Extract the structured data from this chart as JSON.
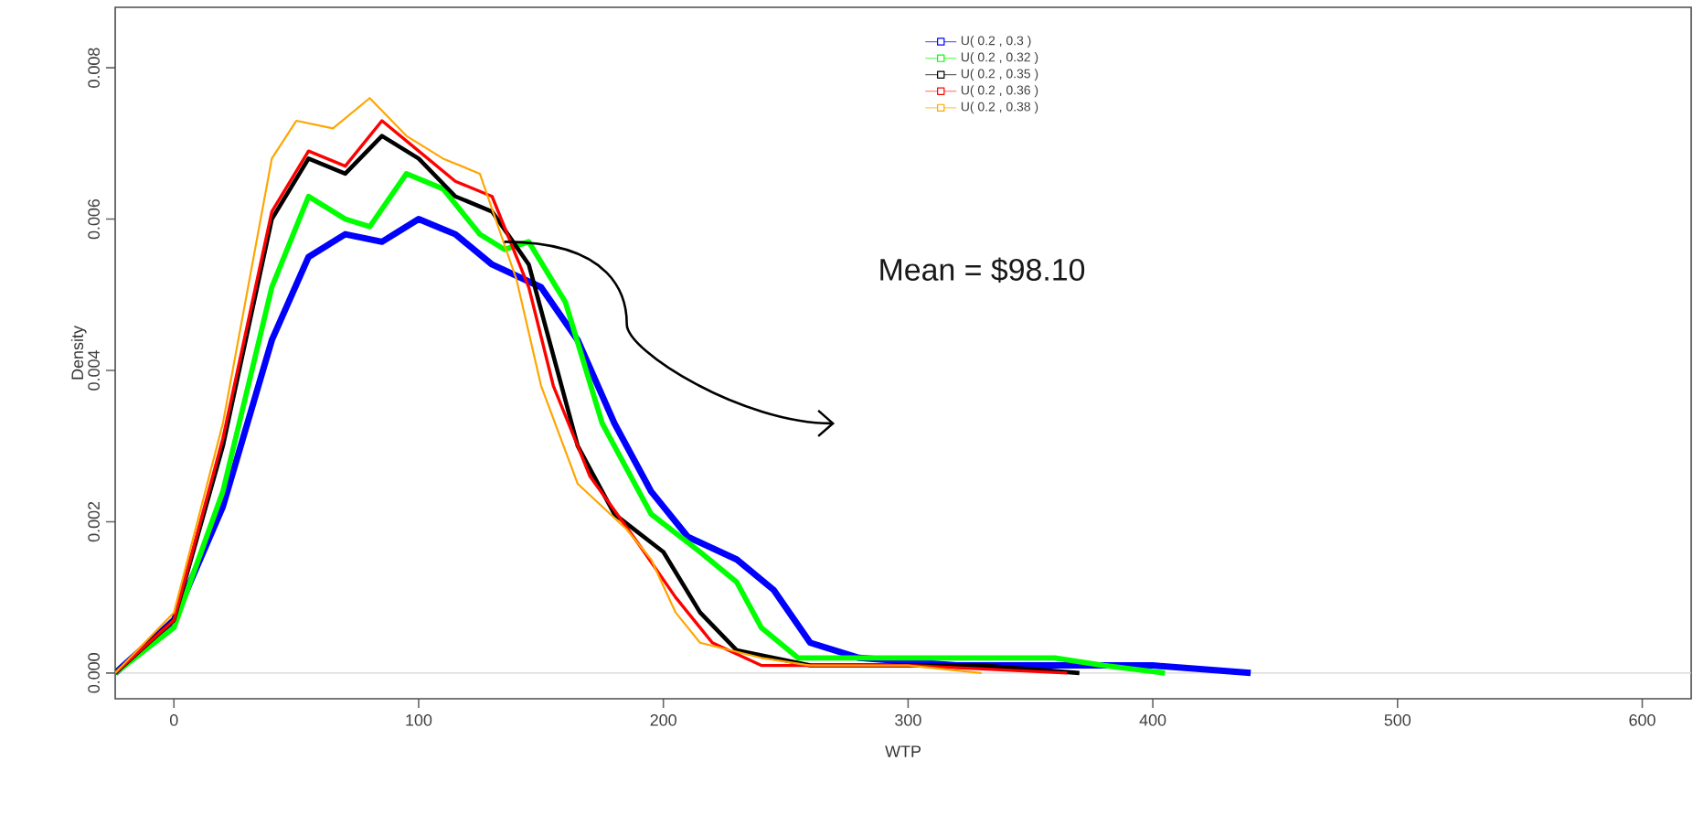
{
  "chart_data": {
    "type": "line",
    "xlabel": "WTP",
    "ylabel": "Density",
    "xlim": [
      -24,
      620
    ],
    "ylim": [
      -0.00034,
      0.0088
    ],
    "xticks": [
      0,
      100,
      200,
      300,
      400,
      500,
      600
    ],
    "yticks": [
      {
        "value": 0,
        "label": "0.000"
      },
      0.002,
      0.004,
      0.006,
      0.008
    ],
    "legend": "top right",
    "line_style": "solid",
    "annotations": [
      "Mean = $98.10"
    ],
    "ref_lines": [
      {
        "axis": "y",
        "value": 0,
        "color": "#d3d3d3"
      }
    ],
    "series": [
      {
        "name": "U( 0.2 , 0.3 )",
        "color": "#0000ff",
        "x": [
          -24,
          0,
          20,
          40,
          55,
          70,
          85,
          100,
          115,
          130,
          150,
          165,
          180,
          195,
          210,
          230,
          245,
          260,
          280,
          320,
          370,
          400,
          440
        ],
        "values": [
          0.0,
          0.0007,
          0.0022,
          0.0044,
          0.0055,
          0.0058,
          0.0057,
          0.006,
          0.0058,
          0.0054,
          0.0051,
          0.0044,
          0.0033,
          0.0024,
          0.0018,
          0.0015,
          0.0011,
          0.0004,
          0.0002,
          0.0001,
          0.0001,
          0.0001,
          0.0
        ]
      },
      {
        "name": "U( 0.2 , 0.32 )",
        "color": "#00ff00",
        "x": [
          -24,
          0,
          20,
          40,
          55,
          70,
          80,
          95,
          110,
          125,
          135,
          145,
          160,
          175,
          195,
          215,
          230,
          240,
          255,
          320,
          360,
          380,
          405
        ],
        "values": [
          0.0,
          0.0006,
          0.0024,
          0.0051,
          0.0063,
          0.006,
          0.0059,
          0.0066,
          0.0064,
          0.0058,
          0.0056,
          0.0057,
          0.0049,
          0.0033,
          0.0021,
          0.0016,
          0.0012,
          0.0006,
          0.0002,
          0.0002,
          0.0002,
          0.0001,
          0.0
        ]
      },
      {
        "name": "U( 0.2 , 0.35 )",
        "color": "#000000",
        "x": [
          -24,
          0,
          20,
          40,
          55,
          70,
          85,
          100,
          115,
          130,
          145,
          155,
          165,
          180,
          200,
          215,
          230,
          260,
          330,
          370
        ],
        "values": [
          0.0,
          0.0007,
          0.003,
          0.006,
          0.0068,
          0.0066,
          0.0071,
          0.0068,
          0.0063,
          0.0061,
          0.0054,
          0.0042,
          0.003,
          0.0021,
          0.0016,
          0.0008,
          0.0003,
          0.0001,
          0.0001,
          0.0
        ]
      },
      {
        "name": "U( 0.2 , 0.36 )",
        "color": "#ff0000",
        "x": [
          -24,
          0,
          20,
          40,
          55,
          70,
          85,
          100,
          115,
          130,
          145,
          155,
          170,
          190,
          205,
          220,
          240,
          300,
          365
        ],
        "values": [
          0.0,
          0.0007,
          0.0031,
          0.0061,
          0.0069,
          0.0067,
          0.0073,
          0.0069,
          0.0065,
          0.0063,
          0.0051,
          0.0038,
          0.0026,
          0.0017,
          0.001,
          0.0004,
          0.0001,
          0.0001,
          0.0
        ]
      },
      {
        "name": "U( 0.2 , 0.38 )",
        "color": "#ffa500",
        "x": [
          -24,
          0,
          20,
          40,
          50,
          65,
          80,
          95,
          110,
          125,
          140,
          150,
          165,
          185,
          195,
          205,
          215,
          240,
          260,
          300,
          330
        ],
        "values": [
          0.0,
          0.0008,
          0.0033,
          0.0068,
          0.0073,
          0.0072,
          0.0076,
          0.0071,
          0.0068,
          0.0066,
          0.0052,
          0.0038,
          0.0025,
          0.0019,
          0.0015,
          0.0008,
          0.0004,
          0.0002,
          0.0001,
          0.0001,
          0.0
        ]
      }
    ]
  }
}
